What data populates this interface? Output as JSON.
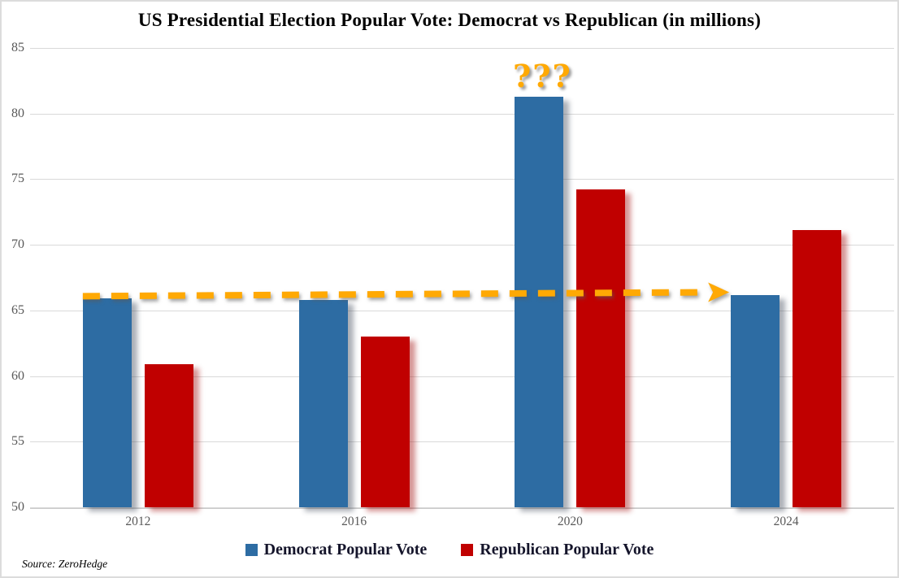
{
  "title": "US Presidential Election Popular Vote: Democrat vs Republican (in millions)",
  "source": "Source: ZeroHedge",
  "colors": {
    "democrat": "#2D6CA3",
    "republican": "#C00000",
    "annotation_orange": "#FFA904",
    "gridline": "#D9D9D9",
    "axis_line": "#C9C9C9",
    "tick_text": "#595959",
    "legend_text": "#15152B",
    "democrat_shadow": "rgba(70,80,95,0.45)",
    "republican_shadow": "rgba(165,20,20,0.45)"
  },
  "chart_data": {
    "type": "bar",
    "categories": [
      "2012",
      "2016",
      "2020",
      "2024"
    ],
    "series": [
      {
        "name": "Democrat Popular Vote",
        "color": "#2D6CA3",
        "values": [
          65.9,
          65.8,
          81.3,
          66.2
        ]
      },
      {
        "name": "Republican Popular Vote",
        "color": "#C00000",
        "values": [
          60.9,
          63.0,
          74.2,
          71.1
        ]
      }
    ],
    "title": "US Presidential Election Popular Vote: Democrat vs Republican (in millions)",
    "xlabel": "",
    "ylabel": "",
    "ylim": [
      50,
      85
    ],
    "yticks": [
      50,
      55,
      60,
      65,
      70,
      75,
      80,
      85
    ],
    "grid": true,
    "legend_position": "bottom",
    "annotations": [
      {
        "type": "dashed-arrow",
        "text": "",
        "color": "#FFA904",
        "from": {
          "category": "2012",
          "series": "Democrat Popular Vote",
          "value": 65.9
        },
        "to": {
          "category": "2024",
          "series": "Democrat Popular Vote",
          "value": 66.2
        }
      },
      {
        "type": "text",
        "text": "???",
        "color": "#FFA904",
        "category": "2020",
        "series": "Democrat Popular Vote",
        "position": "above-bar"
      }
    ]
  },
  "legend": {
    "items": [
      {
        "label": "Democrat Popular Vote",
        "color": "#2D6CA3"
      },
      {
        "label": "Republican Popular Vote",
        "color": "#C00000"
      }
    ]
  }
}
